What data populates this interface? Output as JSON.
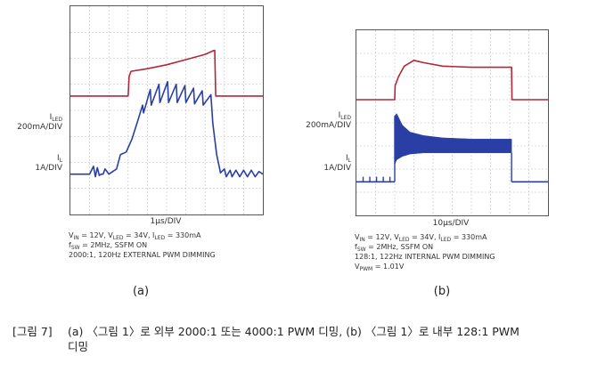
{
  "chart_data": [
    {
      "type": "line",
      "panel_tag": "(a)",
      "time_label": "1μs/DIV",
      "labels": {
        "iled_name": "I",
        "iled_sub": "LED",
        "iled_scale": "200mA/DIV",
        "il_name": "I",
        "il_sub": "L",
        "il_scale": "1A/DIV"
      },
      "conditions": [
        {
          "parts": [
            [
              "V",
              ""
            ],
            [
              "IN",
              "sub"
            ],
            [
              " = 12V, V",
              ""
            ],
            [
              "LED",
              "sub"
            ],
            [
              " = 34V, I",
              ""
            ],
            [
              "LED",
              "sub"
            ],
            [
              " = 330mA",
              ""
            ]
          ]
        },
        {
          "parts": [
            [
              "f",
              ""
            ],
            [
              "SW",
              "sub"
            ],
            [
              " = 2MHz, SSFM ON",
              ""
            ]
          ]
        },
        {
          "parts": [
            [
              "2000:1, 120Hz EXTERNAL PWM DIMMING",
              ""
            ]
          ]
        }
      ],
      "grid": {
        "divisions_x": 10,
        "divisions_y": 8
      },
      "series": [
        {
          "color": "#b0283a",
          "x": [
            0,
            3.0,
            3.05,
            3.15,
            4.0,
            5.0,
            6.0,
            7.0,
            7.45,
            7.5,
            7.55,
            10
          ],
          "y": [
            4.55,
            4.55,
            5.3,
            5.5,
            5.6,
            5.75,
            5.95,
            6.15,
            6.3,
            6.3,
            4.55,
            4.55
          ]
        },
        {
          "color": "#2a3fa6",
          "x": [
            0,
            1.0,
            1.2,
            1.3,
            1.4,
            1.5,
            1.6,
            1.7,
            1.8,
            2.0,
            2.4,
            2.6,
            2.9,
            3.2,
            3.5,
            3.75,
            3.8,
            4.15,
            4.2,
            4.6,
            4.65,
            5.05,
            5.1,
            5.5,
            5.55,
            5.95,
            6.0,
            6.4,
            6.45,
            6.85,
            6.9,
            7.3,
            7.4,
            7.6,
            7.8,
            8.0,
            8.1,
            8.3,
            8.4,
            8.6,
            8.8,
            9.0,
            9.2,
            9.4,
            9.6,
            9.8,
            10
          ],
          "y": [
            1.55,
            1.55,
            1.85,
            1.45,
            1.8,
            1.5,
            1.55,
            1.55,
            1.75,
            1.55,
            1.75,
            2.3,
            2.4,
            2.9,
            3.6,
            4.2,
            3.9,
            4.8,
            4.2,
            5.0,
            4.3,
            5.1,
            4.3,
            5.0,
            4.3,
            4.95,
            4.3,
            4.85,
            4.25,
            4.75,
            4.2,
            4.6,
            3.5,
            2.3,
            1.6,
            1.75,
            1.45,
            1.7,
            1.45,
            1.7,
            1.45,
            1.7,
            1.45,
            1.7,
            1.45,
            1.65,
            1.55
          ]
        }
      ]
    },
    {
      "type": "line",
      "panel_tag": "(b)",
      "time_label": "10μs/DIV",
      "labels": {
        "iled_name": "I",
        "iled_sub": "LED",
        "iled_scale": "200mA/DIV",
        "il_name": "I",
        "il_sub": "L",
        "il_scale": "1A/DIV"
      },
      "conditions": [
        {
          "parts": [
            [
              "V",
              ""
            ],
            [
              "IN",
              "sub"
            ],
            [
              " = 12V, V",
              ""
            ],
            [
              "LED",
              "sub"
            ],
            [
              " = 34V, I",
              ""
            ],
            [
              "LED",
              "sub"
            ],
            [
              " = 330mA",
              ""
            ]
          ]
        },
        {
          "parts": [
            [
              "f",
              ""
            ],
            [
              "SW",
              "sub"
            ],
            [
              " = 2MHz, SSFM ON",
              ""
            ]
          ]
        },
        {
          "parts": [
            [
              "128:1, 122Hz INTERNAL PWM DIMMING",
              ""
            ]
          ]
        },
        {
          "parts": [
            [
              "V",
              ""
            ],
            [
              "PWM",
              "sub"
            ],
            [
              " = 1.01V",
              ""
            ]
          ]
        }
      ],
      "grid": {
        "divisions_x": 10,
        "divisions_y": 8
      },
      "series": [
        {
          "color": "#b0283a",
          "x": [
            0,
            2.0,
            2.02,
            2.2,
            2.5,
            3.0,
            3.5,
            4.5,
            6.0,
            8.1,
            8.12,
            10
          ],
          "y": [
            5.0,
            5.0,
            5.6,
            6.0,
            6.45,
            6.7,
            6.6,
            6.45,
            6.4,
            6.4,
            5.0,
            5.0
          ]
        },
        {
          "color": "#2a3fa6",
          "envelope": true,
          "x": [
            2.0,
            2.1,
            2.4,
            2.8,
            3.5,
            4.5,
            6.0,
            8.1
          ],
          "y_high": [
            4.3,
            4.4,
            3.9,
            3.6,
            3.45,
            3.35,
            3.3,
            3.3
          ],
          "y_low": [
            2.2,
            2.4,
            2.55,
            2.65,
            2.7,
            2.7,
            2.7,
            2.7
          ],
          "baseline": 1.45,
          "pulses_x": [
            0.35,
            0.7,
            1.05,
            1.4,
            1.75
          ]
        }
      ]
    }
  ],
  "caption": {
    "number": "[그림 7]",
    "line1": "(a) 〈그림 1〉로 외부 2000:1 또는 4000:1 PWM 디밍, (b) 〈그림 1〉로 내부 128:1 PWM",
    "line2": "디밍"
  }
}
